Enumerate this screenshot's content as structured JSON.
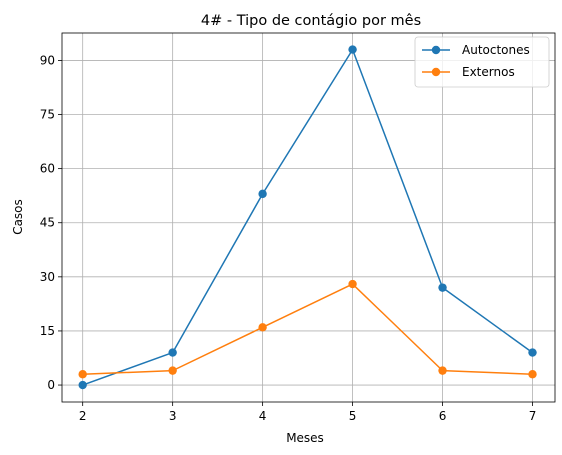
{
  "chart_data": {
    "type": "line",
    "title": "4# - Tipo de contágio por mês",
    "xlabel": "Meses",
    "ylabel": "Casos",
    "x": [
      2,
      3,
      4,
      5,
      6,
      7
    ],
    "xticks": [
      "2",
      "3",
      "4",
      "5",
      "6",
      "7"
    ],
    "yticks": [
      "0",
      "15",
      "30",
      "45",
      "60",
      "75",
      "90"
    ],
    "xlim": [
      1.77,
      7.25
    ],
    "ylim": [
      -4.7,
      97.6
    ],
    "grid": true,
    "legend_position": "top-right",
    "series": [
      {
        "name": "Autoctones",
        "color": "#1f77b4",
        "values": [
          0,
          9,
          53,
          93,
          27,
          9
        ]
      },
      {
        "name": "Externos",
        "color": "#ff7f0e",
        "values": [
          3,
          4,
          16,
          28,
          4,
          3
        ]
      }
    ]
  }
}
